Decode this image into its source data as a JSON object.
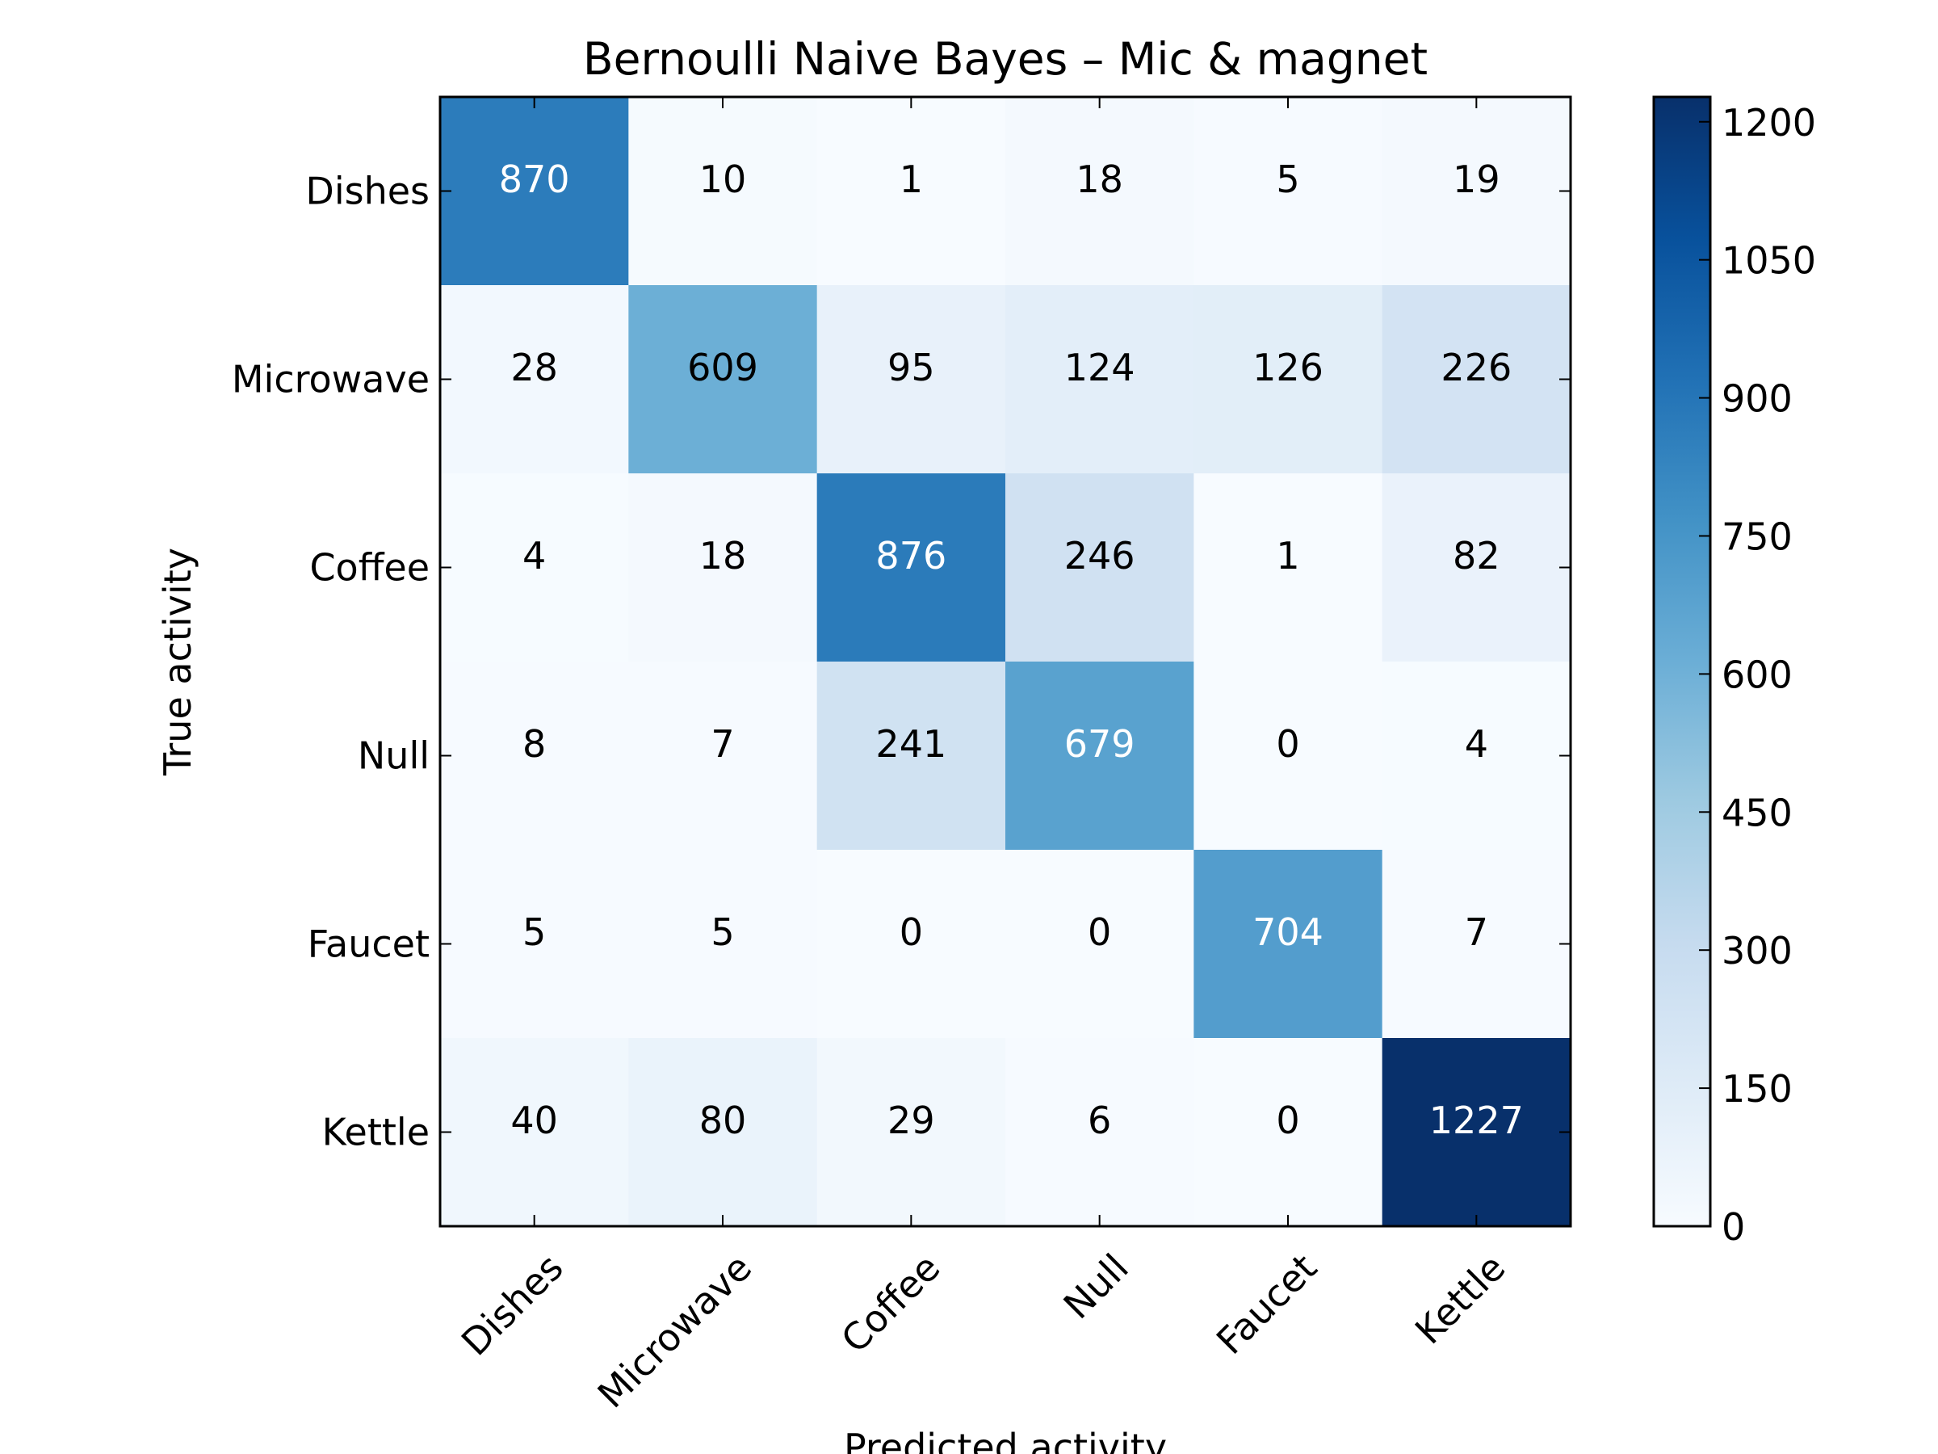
{
  "chart_data": {
    "type": "heatmap",
    "title": "Bernoulli Naive Bayes – Mic & magnet",
    "xlabel": "Predicted activity",
    "ylabel": "True activity",
    "x_categories": [
      "Dishes",
      "Microwave",
      "Coffee",
      "Null",
      "Faucet",
      "Kettle"
    ],
    "y_categories": [
      "Dishes",
      "Microwave",
      "Coffee",
      "Null",
      "Faucet",
      "Kettle"
    ],
    "values": [
      [
        870,
        10,
        1,
        18,
        5,
        19
      ],
      [
        28,
        609,
        95,
        124,
        126,
        226
      ],
      [
        4,
        18,
        876,
        246,
        1,
        82
      ],
      [
        8,
        7,
        241,
        679,
        0,
        4
      ],
      [
        5,
        5,
        0,
        0,
        704,
        7
      ],
      [
        40,
        80,
        29,
        6,
        0,
        1227
      ]
    ],
    "colormap": "Blues",
    "colorbar": {
      "range": [
        0,
        1227
      ],
      "ticks": [
        0,
        150,
        300,
        450,
        600,
        750,
        900,
        1050,
        1200
      ]
    }
  }
}
